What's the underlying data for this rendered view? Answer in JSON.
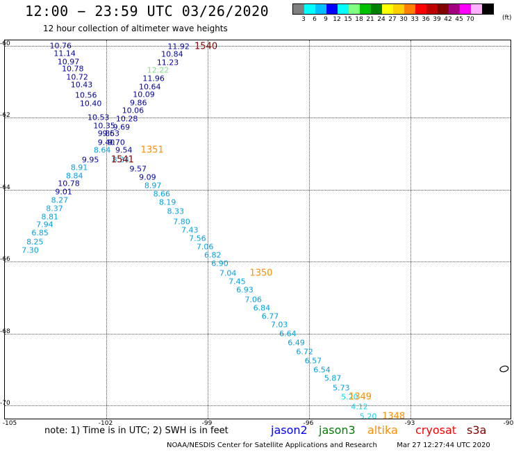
{
  "header": {
    "title": "12:00 − 23:59 UTC 03/26/2020",
    "subtitle": "12 hour collection of altimeter wave heights"
  },
  "legend": {
    "colors": [
      "#808080",
      "#00ffff",
      "#00bfff",
      "#0000ff",
      "#00ffff",
      "#80ff80",
      "#00c000",
      "#008000",
      "#ffff00",
      "#ffd000",
      "#ff8000",
      "#ff0000",
      "#c00000",
      "#800000",
      "#a00080",
      "#ff00ff",
      "#ffb0ff",
      "#000000"
    ],
    "labels": [
      "3",
      "6",
      "9",
      "12",
      "15",
      "18",
      "21",
      "24",
      "27",
      "30",
      "33",
      "36",
      "39",
      "42",
      "45",
      "70"
    ],
    "unit": "(ft)"
  },
  "axes": {
    "lat_labels": [
      "-60",
      "-62",
      "-64",
      "-66",
      "-68",
      "-70"
    ],
    "lon_labels": [
      "-105",
      "-102",
      "-99",
      "-96",
      "-93",
      "-90"
    ]
  },
  "observations": [
    {
      "v": "10.76",
      "c": "#0000a0",
      "lon": -103.35,
      "lat": -60.01
    },
    {
      "v": "11.14",
      "c": "#0000a0",
      "lon": -103.23,
      "lat": -60.22
    },
    {
      "v": "10.97",
      "c": "#0000a0",
      "lon": -103.12,
      "lat": -60.44
    },
    {
      "v": "10.78",
      "c": "#0000a0",
      "lon": -102.99,
      "lat": -60.65
    },
    {
      "v": "10.72",
      "c": "#0000a0",
      "lon": -102.86,
      "lat": -60.87
    },
    {
      "v": "10.43",
      "c": "#0000a0",
      "lon": -102.73,
      "lat": -61.09
    },
    {
      "v": "10.56",
      "c": "#0000a0",
      "lon": -102.6,
      "lat": -61.37
    },
    {
      "v": "10.40",
      "c": "#0000a0",
      "lon": -102.46,
      "lat": -61.6
    },
    {
      "v": "10.53",
      "c": "#0000a0",
      "lon": -102.23,
      "lat": -61.99
    },
    {
      "v": "10.35",
      "c": "#0000a0",
      "lon": -102.06,
      "lat": -62.22
    },
    {
      "v": "9.85",
      "c": "#0000a0",
      "lon": -102.0,
      "lat": -62.44
    },
    {
      "v": "9.63",
      "c": "#0000a0",
      "lon": -101.86,
      "lat": -62.44
    },
    {
      "v": "9.40",
      "c": "#0000a0",
      "lon": -102.0,
      "lat": -62.69
    },
    {
      "v": "9.70",
      "c": "#0000a0",
      "lon": -101.7,
      "lat": -62.69
    },
    {
      "v": "8.64",
      "c": "#00a0e0",
      "lon": -102.12,
      "lat": -62.91
    },
    {
      "v": "9.54",
      "c": "#0000a0",
      "lon": -101.48,
      "lat": -62.91
    },
    {
      "v": "9.95",
      "c": "#0000a0",
      "lon": -102.47,
      "lat": -63.17
    },
    {
      "v": "8.34",
      "c": "#00a0e0",
      "lon": -101.57,
      "lat": -63.17
    },
    {
      "v": "8.91",
      "c": "#00a0e0",
      "lon": -102.8,
      "lat": -63.39
    },
    {
      "v": "8.84",
      "c": "#00a0e0",
      "lon": -102.94,
      "lat": -63.62
    },
    {
      "v": "10.78",
      "c": "#0000a0",
      "lon": -103.11,
      "lat": -63.83
    },
    {
      "v": "9.01",
      "c": "#0000a0",
      "lon": -103.26,
      "lat": -64.06
    },
    {
      "v": "8.27",
      "c": "#00a0e0",
      "lon": -103.38,
      "lat": -64.29
    },
    {
      "v": "8.37",
      "c": "#00a0e0",
      "lon": -103.53,
      "lat": -64.53
    },
    {
      "v": "8.81",
      "c": "#00a0e0",
      "lon": -103.67,
      "lat": -64.75
    },
    {
      "v": "7.94",
      "c": "#00a0e0",
      "lon": -103.82,
      "lat": -64.98
    },
    {
      "v": "6.85",
      "c": "#00a0e0",
      "lon": -103.96,
      "lat": -65.21
    },
    {
      "v": "8.25",
      "c": "#00a0e0",
      "lon": -104.11,
      "lat": -65.45
    },
    {
      "v": "7.30",
      "c": "#00a0e0",
      "lon": -104.25,
      "lat": -65.68
    },
    {
      "v": "11.92",
      "c": "#0000a0",
      "lon": -99.86,
      "lat": -60.03
    },
    {
      "v": "10.84",
      "c": "#0000a0",
      "lon": -100.05,
      "lat": -60.24
    },
    {
      "v": "11.23",
      "c": "#0000a0",
      "lon": -100.18,
      "lat": -60.46
    },
    {
      "v": "12.22",
      "c": "#80e080",
      "lon": -100.47,
      "lat": -60.69
    },
    {
      "v": "11.96",
      "c": "#0000a0",
      "lon": -100.6,
      "lat": -60.91
    },
    {
      "v": "10.64",
      "c": "#0000a0",
      "lon": -100.71,
      "lat": -61.14
    },
    {
      "v": "10.09",
      "c": "#0000a0",
      "lon": -100.89,
      "lat": -61.36
    },
    {
      "v": "9.86",
      "c": "#0000a0",
      "lon": -101.05,
      "lat": -61.59
    },
    {
      "v": "10.06",
      "c": "#0000a0",
      "lon": -101.21,
      "lat": -61.81
    },
    {
      "v": "10.28",
      "c": "#0000a0",
      "lon": -101.39,
      "lat": -62.04
    },
    {
      "v": "9.69",
      "c": "#0000a0",
      "lon": -101.55,
      "lat": -62.26
    },
    {
      "v": "9.57",
      "c": "#0000a0",
      "lon": -101.06,
      "lat": -63.42
    },
    {
      "v": "9.09",
      "c": "#0000a0",
      "lon": -100.78,
      "lat": -63.65
    },
    {
      "v": "8.97",
      "c": "#00a0e0",
      "lon": -100.62,
      "lat": -63.88
    },
    {
      "v": "8.66",
      "c": "#00a0e0",
      "lon": -100.36,
      "lat": -64.12
    },
    {
      "v": "8.19",
      "c": "#00a0e0",
      "lon": -100.19,
      "lat": -64.36
    },
    {
      "v": "8.33",
      "c": "#00a0e0",
      "lon": -99.95,
      "lat": -64.6
    },
    {
      "v": "7.80",
      "c": "#00a0e0",
      "lon": -99.77,
      "lat": -64.89
    },
    {
      "v": "7.43",
      "c": "#00a0e0",
      "lon": -99.53,
      "lat": -65.12
    },
    {
      "v": "7.56",
      "c": "#00a0e0",
      "lon": -99.3,
      "lat": -65.36
    },
    {
      "v": "7.06",
      "c": "#00a0e0",
      "lon": -99.08,
      "lat": -65.59
    },
    {
      "v": "6.82",
      "c": "#00a0e0",
      "lon": -98.85,
      "lat": -65.82
    },
    {
      "v": "6.90",
      "c": "#00a0e0",
      "lon": -98.64,
      "lat": -66.06
    },
    {
      "v": "7.04",
      "c": "#00a0e0",
      "lon": -98.4,
      "lat": -66.32
    },
    {
      "v": "7.45",
      "c": "#00a0e0",
      "lon": -98.13,
      "lat": -66.56
    },
    {
      "v": "6.93",
      "c": "#00a0e0",
      "lon": -97.9,
      "lat": -66.79
    },
    {
      "v": "7.06",
      "c": "#00a0e0",
      "lon": -97.65,
      "lat": -67.05
    },
    {
      "v": "6.84",
      "c": "#00a0e0",
      "lon": -97.4,
      "lat": -67.28
    },
    {
      "v": "6.77",
      "c": "#00a0e0",
      "lon": -97.15,
      "lat": -67.52
    },
    {
      "v": "7.03",
      "c": "#00a0e0",
      "lon": -96.88,
      "lat": -67.76
    },
    {
      "v": "6.64",
      "c": "#00a0e0",
      "lon": -96.63,
      "lat": -68.01
    },
    {
      "v": "6.49",
      "c": "#00a0e0",
      "lon": -96.38,
      "lat": -68.25
    },
    {
      "v": "6.72",
      "c": "#00a0e0",
      "lon": -96.13,
      "lat": -68.51
    },
    {
      "v": "6.57",
      "c": "#00a0e0",
      "lon": -95.88,
      "lat": -68.76
    },
    {
      "v": "6.54",
      "c": "#00a0e0",
      "lon": -95.62,
      "lat": -69.0
    },
    {
      "v": "5.87",
      "c": "#00a0e0",
      "lon": -95.3,
      "lat": -69.25
    },
    {
      "v": "5.73",
      "c": "#00a0e0",
      "lon": -95.05,
      "lat": -69.51
    },
    {
      "v": "5.20",
      "c": "#00d8f0",
      "lon": -94.8,
      "lat": -69.77
    },
    {
      "v": "4.12",
      "c": "#00d8f0",
      "lon": -94.51,
      "lat": -70.03
    },
    {
      "v": "5.20",
      "c": "#00d8f0",
      "lon": -94.25,
      "lat": -70.3
    }
  ],
  "pass_times": [
    {
      "v": "1540",
      "c": "#800000",
      "lon": -99.05,
      "lat": -60.03
    },
    {
      "v": "1351",
      "c": "#ff8c00",
      "lon": -100.64,
      "lat": -62.91
    },
    {
      "v": "1541",
      "c": "#800000",
      "lon": -101.52,
      "lat": -63.17
    },
    {
      "v": "1350",
      "c": "#ff8c00",
      "lon": -97.42,
      "lat": -66.32
    },
    {
      "v": "1349",
      "c": "#ff8c00",
      "lon": -94.49,
      "lat": -69.77
    },
    {
      "v": "1348",
      "c": "#ff8c00",
      "lon": -93.5,
      "lat": -70.3
    }
  ],
  "coast_outline": {
    "lon": -90.23,
    "lat": -68.98,
    "color": "#000000"
  },
  "note": "note:  1) Time is in UTC; 2) SWH is in feet",
  "satellites": [
    {
      "name": "jason2",
      "color": "#0000ff"
    },
    {
      "name": "jason3",
      "color": "#008000"
    },
    {
      "name": "altika",
      "color": "#ff8c00"
    },
    {
      "name": "cryosat",
      "color": "#ff0000"
    },
    {
      "name": "s3a",
      "color": "#800000"
    }
  ],
  "footer": {
    "credit": "NOAA/NESDIS Center for Satellite Applications and Research",
    "timestamp": "Mar 27 12:27:44 UTC 2020"
  }
}
